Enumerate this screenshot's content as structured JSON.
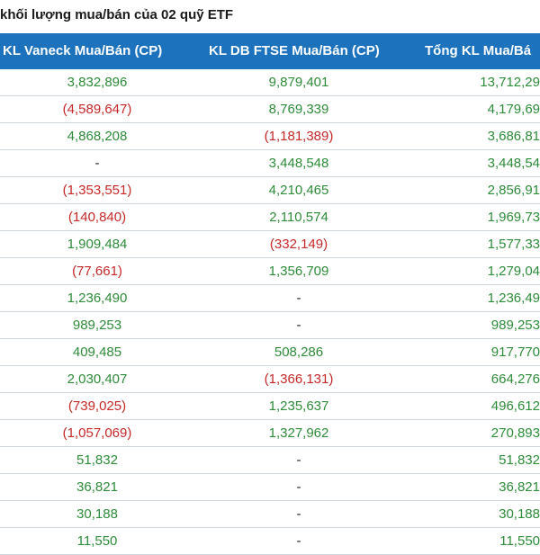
{
  "title": "khối lượng mua/bán của 02 quỹ ETF",
  "headers": [
    "KL Vaneck Mua/Bán (CP)",
    "KL DB FTSE Mua/Bán (CP)",
    "Tổng KL Mua/Bá"
  ],
  "colors": {
    "header_bg": "#1c72bd",
    "positive": "#2e8b3a",
    "negative": "#c62828"
  },
  "rows": [
    [
      "3,832,896",
      "9,879,401",
      "13,712,29"
    ],
    [
      "(4,589,647)",
      "8,769,339",
      "4,179,69"
    ],
    [
      "4,868,208",
      "(1,181,389)",
      "3,686,81"
    ],
    [
      "-",
      "3,448,548",
      "3,448,54"
    ],
    [
      "(1,353,551)",
      "4,210,465",
      "2,856,91"
    ],
    [
      "(140,840)",
      "2,110,574",
      "1,969,73"
    ],
    [
      "1,909,484",
      "(332,149)",
      "1,577,33"
    ],
    [
      "(77,661)",
      "1,356,709",
      "1,279,04"
    ],
    [
      "1,236,490",
      "-",
      "1,236,49"
    ],
    [
      "989,253",
      "-",
      "989,253"
    ],
    [
      "409,485",
      "508,286",
      "917,770"
    ],
    [
      "2,030,407",
      "(1,366,131)",
      "664,276"
    ],
    [
      "(739,025)",
      "1,235,637",
      "496,612"
    ],
    [
      "(1,057,069)",
      "1,327,962",
      "270,893"
    ],
    [
      "51,832",
      "-",
      "51,832"
    ],
    [
      "36,821",
      "-",
      "36,821"
    ],
    [
      "30,188",
      "-",
      "30,188"
    ],
    [
      "11,550",
      "-",
      "11,550"
    ]
  ]
}
